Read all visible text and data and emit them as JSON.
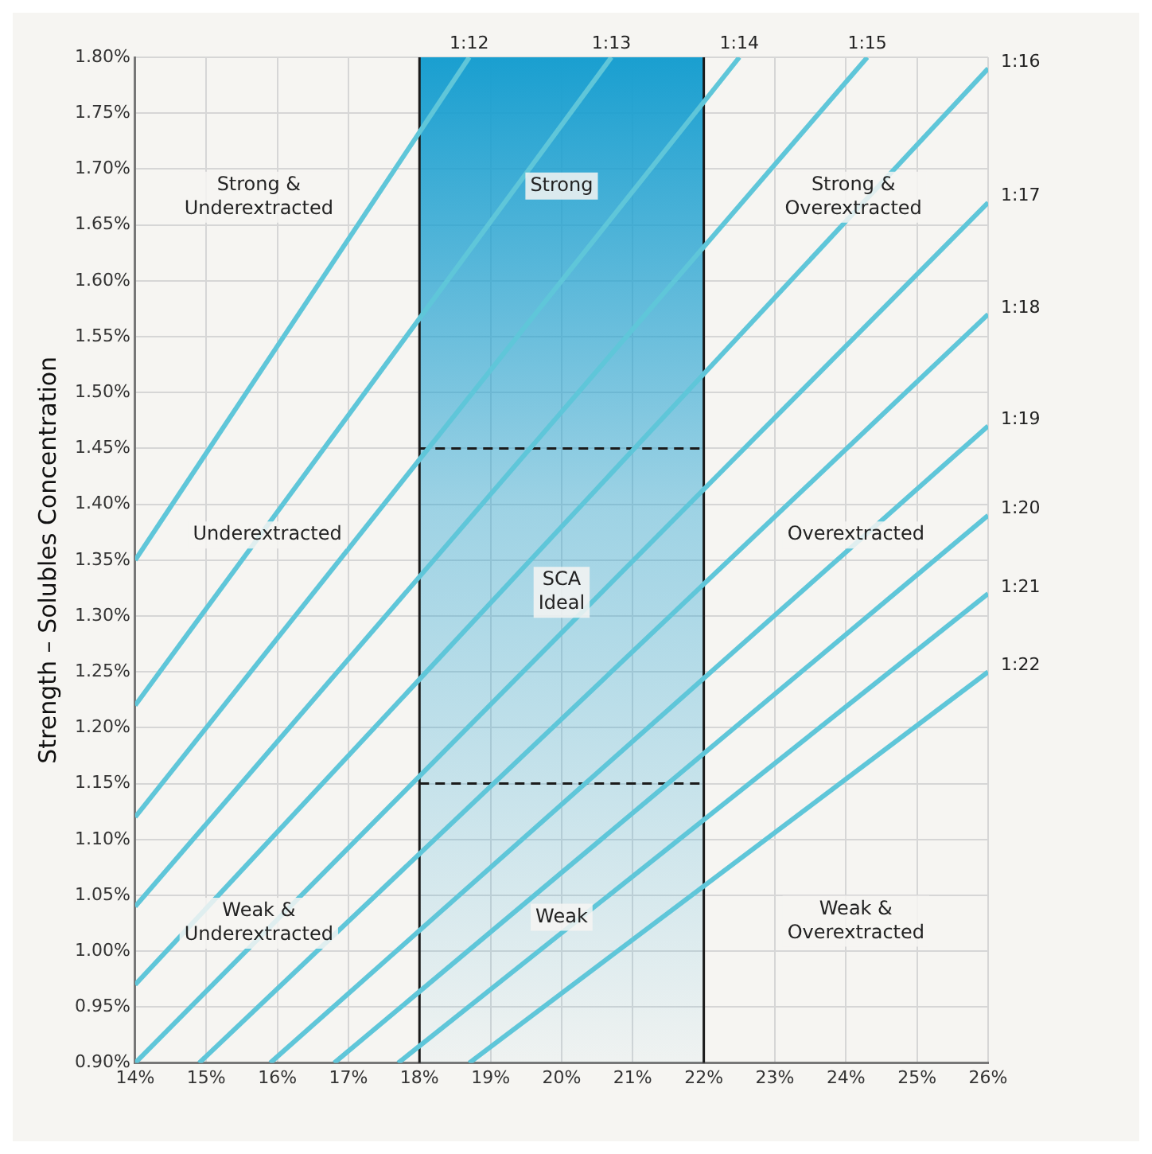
{
  "chart_data": {
    "type": "line",
    "ylabel": "Strength – Solubles Concentration",
    "xlim": [
      14,
      26
    ],
    "ylim": [
      0.9,
      1.8
    ],
    "xticks": [
      {
        "value": 14,
        "label": "14%"
      },
      {
        "value": 15,
        "label": "15%"
      },
      {
        "value": 16,
        "label": "16%"
      },
      {
        "value": 17,
        "label": "17%"
      },
      {
        "value": 18,
        "label": "18%"
      },
      {
        "value": 19,
        "label": "19%"
      },
      {
        "value": 20,
        "label": "20%"
      },
      {
        "value": 21,
        "label": "21%"
      },
      {
        "value": 22,
        "label": "22%"
      },
      {
        "value": 23,
        "label": "23%"
      },
      {
        "value": 24,
        "label": "24%"
      },
      {
        "value": 25,
        "label": "25%"
      },
      {
        "value": 26,
        "label": "26%"
      }
    ],
    "yticks": [
      {
        "value": 0.9,
        "label": "0.90%"
      },
      {
        "value": 0.95,
        "label": "0.95%"
      },
      {
        "value": 1.0,
        "label": "1.00%"
      },
      {
        "value": 1.05,
        "label": "1.05%"
      },
      {
        "value": 1.1,
        "label": "1.10%"
      },
      {
        "value": 1.15,
        "label": "1.15%"
      },
      {
        "value": 1.2,
        "label": "1.20%"
      },
      {
        "value": 1.25,
        "label": "1.25%"
      },
      {
        "value": 1.3,
        "label": "1.30%"
      },
      {
        "value": 1.35,
        "label": "1.35%"
      },
      {
        "value": 1.4,
        "label": "1.40%"
      },
      {
        "value": 1.45,
        "label": "1.45%"
      },
      {
        "value": 1.5,
        "label": "1.50%"
      },
      {
        "value": 1.55,
        "label": "1.55%"
      },
      {
        "value": 1.6,
        "label": "1.60%"
      },
      {
        "value": 1.65,
        "label": "1.65%"
      },
      {
        "value": 1.7,
        "label": "1.70%"
      },
      {
        "value": 1.75,
        "label": "1.75%"
      },
      {
        "value": 1.8,
        "label": "1.80%"
      }
    ],
    "grid": true,
    "legend": false,
    "series": [
      {
        "name": "1:12",
        "color": "#5fc6d9",
        "x": [
          14,
          18.7
        ],
        "values": [
          1.35,
          1.8
        ]
      },
      {
        "name": "1:13",
        "color": "#5fc6d9",
        "x": [
          14,
          20.7
        ],
        "values": [
          1.22,
          1.8
        ]
      },
      {
        "name": "1:14",
        "color": "#5fc6d9",
        "x": [
          14,
          22.5
        ],
        "values": [
          1.12,
          1.8
        ]
      },
      {
        "name": "1:15",
        "color": "#5fc6d9",
        "x": [
          14,
          24.3
        ],
        "values": [
          1.04,
          1.8
        ]
      },
      {
        "name": "1:16",
        "color": "#5fc6d9",
        "x": [
          14,
          26
        ],
        "values": [
          0.97,
          1.79
        ]
      },
      {
        "name": "1:17",
        "color": "#5fc6d9",
        "x": [
          14,
          26
        ],
        "values": [
          0.9,
          1.67
        ]
      },
      {
        "name": "1:18",
        "color": "#5fc6d9",
        "x": [
          14.9,
          26
        ],
        "values": [
          0.9,
          1.57
        ]
      },
      {
        "name": "1:19",
        "color": "#5fc6d9",
        "x": [
          15.9,
          26
        ],
        "values": [
          0.9,
          1.47
        ]
      },
      {
        "name": "1:20",
        "color": "#5fc6d9",
        "x": [
          16.8,
          26
        ],
        "values": [
          0.9,
          1.39
        ]
      },
      {
        "name": "1:21",
        "color": "#5fc6d9",
        "x": [
          17.7,
          26
        ],
        "values": [
          0.9,
          1.32
        ]
      },
      {
        "name": "1:22",
        "color": "#5fc6d9",
        "x": [
          18.7,
          26
        ],
        "values": [
          0.9,
          1.25
        ]
      }
    ],
    "bands": [
      {
        "axis": "x",
        "from": 18,
        "to": 22,
        "color": "#1a9fd0"
      }
    ],
    "ref_lines": [
      {
        "axis": "y",
        "value": 1.45,
        "color": "#1a1a1a",
        "line_style": "dashed"
      },
      {
        "axis": "y",
        "value": 1.15,
        "color": "#1a1a1a",
        "line_style": "dashed"
      }
    ],
    "annotations": [
      "Strong &\nUnderextracted",
      "Strong",
      "Strong &\nOverextracted",
      "Underextracted",
      "Overextracted",
      "SCA\nIdeal",
      "Weak &\nUnderextracted",
      "Weak",
      "Weak &\nOverextracted"
    ]
  }
}
